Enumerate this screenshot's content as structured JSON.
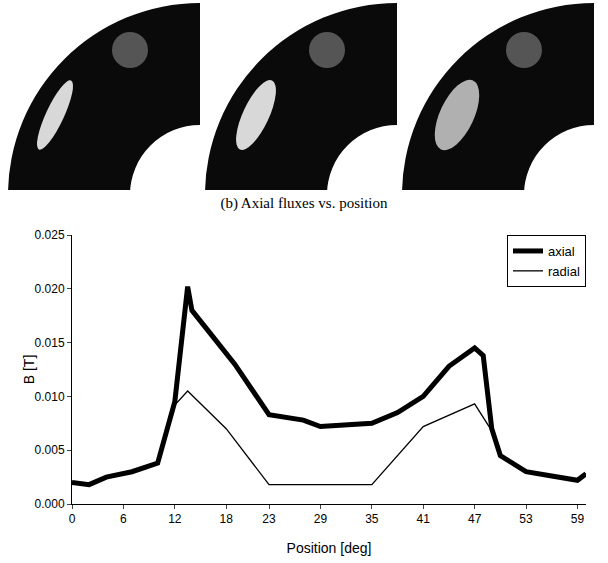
{
  "caption": "(b) Axial fluxes vs. position",
  "chart_data": {
    "type": "line",
    "x_label": "Position [deg]",
    "y_label": "B [T]",
    "xlim": [
      0,
      60
    ],
    "xticks": [
      0,
      6,
      12,
      18,
      23,
      29,
      35,
      41,
      47,
      53,
      59
    ],
    "ylim": [
      0,
      0.025
    ],
    "yticks": [
      {
        "value": 0,
        "label": "0.000"
      },
      {
        "value": 0.005,
        "label": "0.005"
      },
      {
        "value": 0.01,
        "label": "0.010"
      },
      {
        "value": 0.015,
        "label": "0.015"
      },
      {
        "value": 0.02,
        "label": "0.020"
      },
      {
        "value": 0.025,
        "label": "0.025"
      }
    ],
    "grid": false,
    "legend": "top right",
    "series": [
      {
        "name": "axial",
        "color": "#000000",
        "line_style": "thick",
        "x": [
          0,
          2,
          4,
          7,
          10,
          12,
          13.5,
          14,
          16,
          19,
          23,
          25,
          27,
          29,
          32,
          35,
          38,
          41,
          44,
          47,
          48,
          49,
          50,
          53,
          56,
          59,
          60
        ],
        "values": [
          0.002,
          0.0018,
          0.0025,
          0.003,
          0.0038,
          0.0095,
          0.0202,
          0.018,
          0.016,
          0.013,
          0.0083,
          0.008,
          0.0078,
          0.0072,
          0.0073,
          0.0075,
          0.0085,
          0.01,
          0.0128,
          0.0145,
          0.0138,
          0.007,
          0.0045,
          0.003,
          0.0026,
          0.0022,
          0.0028
        ]
      },
      {
        "name": "radial",
        "color": "#000000",
        "line_style": "thin",
        "x": [
          0,
          2,
          4,
          7,
          10,
          12,
          13.5,
          18,
          23,
          35,
          41,
          47,
          49,
          50,
          53,
          56,
          59,
          60
        ],
        "values": [
          0.002,
          0.0018,
          0.0025,
          0.003,
          0.0038,
          0.0092,
          0.0105,
          0.007,
          0.0018,
          0.0018,
          0.0072,
          0.0093,
          0.0068,
          0.0045,
          0.003,
          0.0026,
          0.0022,
          0.0028
        ]
      }
    ]
  }
}
